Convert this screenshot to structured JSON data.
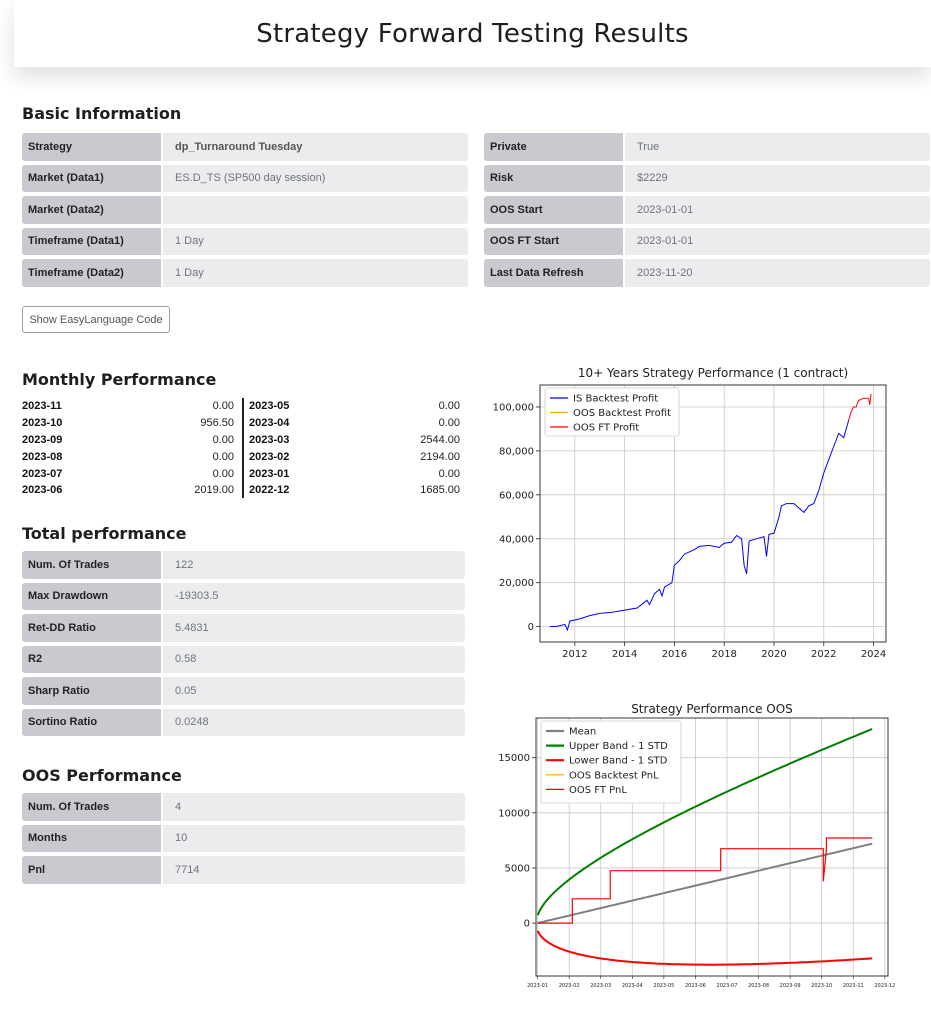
{
  "page_title": "Strategy Forward Testing Results",
  "basic_info": {
    "title": "Basic Information",
    "left": [
      {
        "key": "Strategy",
        "value": "dp_Turnaround Tuesday"
      },
      {
        "key": "Market (Data1)",
        "value": "ES.D_TS (SP500 day session)"
      },
      {
        "key": "Market (Data2)",
        "value": ""
      },
      {
        "key": "Timeframe (Data1)",
        "value": "1 Day"
      },
      {
        "key": "Timeframe (Data2)",
        "value": "1 Day"
      }
    ],
    "right": [
      {
        "key": "Private",
        "value": "True"
      },
      {
        "key": "Risk",
        "value": "$2229"
      },
      {
        "key": "OOS Start",
        "value": "2023-01-01"
      },
      {
        "key": "OOS FT Start",
        "value": "2023-01-01"
      },
      {
        "key": "Last Data Refresh",
        "value": "2023-11-20"
      }
    ]
  },
  "show_code_button": "Show EasyLanguage Code",
  "monthly": {
    "title": "Monthly Performance",
    "left": [
      {
        "month": "2023-11",
        "value": "0.00"
      },
      {
        "month": "2023-10",
        "value": "956.50"
      },
      {
        "month": "2023-09",
        "value": "0.00"
      },
      {
        "month": "2023-08",
        "value": "0.00"
      },
      {
        "month": "2023-07",
        "value": "0.00"
      },
      {
        "month": "2023-06",
        "value": "2019.00"
      }
    ],
    "right": [
      {
        "month": "2023-05",
        "value": "0.00"
      },
      {
        "month": "2023-04",
        "value": "0.00"
      },
      {
        "month": "2023-03",
        "value": "2544.00"
      },
      {
        "month": "2023-02",
        "value": "2194.00"
      },
      {
        "month": "2023-01",
        "value": "0.00"
      },
      {
        "month": "2022-12",
        "value": "1685.00"
      }
    ]
  },
  "total": {
    "title": "Total performance",
    "rows": [
      {
        "key": "Num. Of Trades",
        "value": "122"
      },
      {
        "key": "Max Drawdown",
        "value": "-19303.5"
      },
      {
        "key": "Ret-DD Ratio",
        "value": "5.4831"
      },
      {
        "key": "R2",
        "value": "0.58"
      },
      {
        "key": "Sharp Ratio",
        "value": "0.05"
      },
      {
        "key": "Sortino Ratio",
        "value": "0.0248"
      }
    ]
  },
  "oos": {
    "title": "OOS Performance",
    "rows": [
      {
        "key": "Num. Of Trades",
        "value": "4"
      },
      {
        "key": "Months",
        "value": "10"
      },
      {
        "key": "Pnl",
        "value": "7714"
      }
    ]
  },
  "chart_data": [
    {
      "type": "line",
      "title": "10+ Years Strategy Performance (1 contract)",
      "xlabel": "",
      "ylabel": "",
      "xlim": [
        2010.6,
        2024.5
      ],
      "ylim": [
        -7000,
        110000
      ],
      "xticks": [
        2012,
        2014,
        2016,
        2018,
        2020,
        2022,
        2024
      ],
      "yticks": [
        0,
        20000,
        40000,
        60000,
        80000,
        100000
      ],
      "ytick_labels": [
        "0",
        "20,000",
        "40,000",
        "60,000",
        "80,000",
        "100,000"
      ],
      "grid": true,
      "legend": "upper-left",
      "series": [
        {
          "name": "IS Backtest Profit",
          "color": "#0000ff",
          "x": [
            2011.0,
            2011.3,
            2011.6,
            2011.7,
            2011.8,
            2012.2,
            2012.6,
            2013.0,
            2013.5,
            2014.0,
            2014.5,
            2014.9,
            2015.0,
            2015.2,
            2015.4,
            2015.5,
            2015.6,
            2015.9,
            2016.0,
            2016.2,
            2016.4,
            2016.8,
            2017.0,
            2017.4,
            2017.8,
            2018.0,
            2018.3,
            2018.5,
            2018.7,
            2018.8,
            2018.9,
            2019.0,
            2019.3,
            2019.6,
            2019.7,
            2019.8,
            2020.0,
            2020.2,
            2020.3,
            2020.5,
            2020.8,
            2021.2,
            2021.4,
            2021.6,
            2021.8,
            2022.0,
            2022.2,
            2022.4,
            2022.6,
            2022.8,
            2023.0
          ],
          "y": [
            0,
            200,
            1000,
            -1500,
            2500,
            3500,
            5000,
            6000,
            6500,
            7500,
            8500,
            12000,
            10000,
            15000,
            17000,
            14000,
            18000,
            20000,
            28000,
            30000,
            33000,
            35000,
            36500,
            37000,
            36000,
            38000,
            38500,
            41500,
            40000,
            28000,
            24000,
            39000,
            40000,
            41000,
            32000,
            42000,
            42500,
            50000,
            55000,
            56000,
            56000,
            52000,
            55000,
            56000,
            62000,
            70000,
            76000,
            82000,
            88000,
            86000,
            94000
          ]
        },
        {
          "name": "OOS Backtest Profit",
          "color": "#ffa500",
          "x": [],
          "y": []
        },
        {
          "name": "OOS FT Profit",
          "color": "#ff0000",
          "x": [
            2023.0,
            2023.1,
            2023.2,
            2023.3,
            2023.4,
            2023.6,
            2023.8,
            2023.85,
            2023.9
          ],
          "y": [
            94000,
            98000,
            100000,
            100000,
            103000,
            104000,
            104000,
            101000,
            106000
          ]
        }
      ]
    },
    {
      "type": "line",
      "title": "Strategy Performance OOS",
      "xlabel": "",
      "ylabel": "",
      "xticks": [
        "2023-01",
        "2023-02",
        "2023-03",
        "2023-04",
        "2023-05",
        "2023-06",
        "2023-07",
        "2023-08",
        "2023-09",
        "2023-10",
        "2023-11",
        "2023-12"
      ],
      "xlim": [
        -0.05,
        11.1
      ],
      "ylim": [
        -4800,
        18600
      ],
      "yticks": [
        0,
        5000,
        10000,
        15000
      ],
      "ytick_labels": [
        "0",
        "5000",
        "10000",
        "15000"
      ],
      "grid": true,
      "legend": "upper-left",
      "series": [
        {
          "name": "Mean",
          "color": "#808080",
          "kind": "mean"
        },
        {
          "name": "Upper Band - 1 STD",
          "color": "#008000",
          "kind": "upper"
        },
        {
          "name": "Lower Band - 1 STD",
          "color": "#ff0000",
          "kind": "lower"
        },
        {
          "name": "OOS Backtest PnL",
          "color": "#ffa500",
          "kind": "none"
        },
        {
          "name": "OOS FT PnL",
          "color": "#ff0000",
          "kind": "steps",
          "x": [
            0,
            1.1,
            1.1,
            2.3,
            2.3,
            5.8,
            5.8,
            9.05,
            9.05,
            9.15,
            9.15,
            10.6
          ],
          "y": [
            0,
            0,
            2200,
            2200,
            4750,
            4750,
            6750,
            6750,
            3800,
            6700,
            7714,
            7714
          ]
        }
      ],
      "mean_end": 7200,
      "upper_end": 17600,
      "lower_min": -3850
    }
  ]
}
